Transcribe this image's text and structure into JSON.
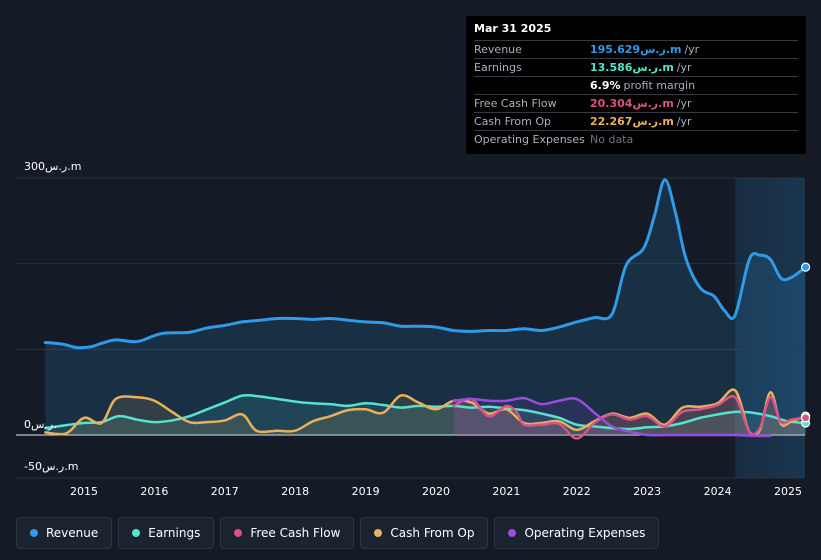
{
  "tooltip": {
    "date": "Mar 31 2025",
    "rows": [
      {
        "label": "Revenue",
        "value": "195.629ر.س.m",
        "unit": "/yr",
        "color": "#2f9ae9"
      },
      {
        "label": "Earnings",
        "value": "13.586ر.س.m",
        "unit": "/yr",
        "color": "#57e2cf"
      },
      {
        "label": "",
        "value": "6.9%",
        "unit": "profit margin",
        "color": "#ffffff"
      },
      {
        "label": "Free Cash Flow",
        "value": "20.304ر.س.m",
        "unit": "/yr",
        "color": "#d9528b"
      },
      {
        "label": "Cash From Op",
        "value": "22.267ر.س.m",
        "unit": "/yr",
        "color": "#e9b05b"
      },
      {
        "label": "Operating Expenses",
        "value": "No data",
        "unit": "",
        "color": "#6b7380"
      }
    ]
  },
  "legend": [
    {
      "label": "Revenue",
      "color": "#2f9ae9"
    },
    {
      "label": "Earnings",
      "color": "#57e2cf"
    },
    {
      "label": "Free Cash Flow",
      "color": "#d9528b"
    },
    {
      "label": "Cash From Op",
      "color": "#e9b05b"
    },
    {
      "label": "Operating Expenses",
      "color": "#9a4ce0"
    }
  ],
  "chart_data": {
    "type": "line",
    "title": "",
    "xlabel": "",
    "ylabel": "",
    "unit": "ر.س.m",
    "y_tick_labels": [
      "300ر.س.m",
      "0ر.س.",
      "-50ر.س.m"
    ],
    "x_tick_labels": [
      "2015",
      "2016",
      "2017",
      "2018",
      "2019",
      "2020",
      "2021",
      "2022",
      "2023",
      "2024",
      "2025"
    ],
    "xlim": [
      2014.0,
      2025.25
    ],
    "ylim": [
      -50,
      300
    ],
    "grid": true,
    "series": [
      {
        "name": "Revenue",
        "color": "#2f9ae9",
        "x": [
          2014.45,
          2014.7,
          2014.9,
          2015.1,
          2015.25,
          2015.45,
          2015.75,
          2016.0,
          2016.15,
          2016.5,
          2016.75,
          2017.0,
          2017.25,
          2017.5,
          2017.75,
          2018.0,
          2018.25,
          2018.5,
          2018.75,
          2019.0,
          2019.25,
          2019.5,
          2019.75,
          2020.0,
          2020.25,
          2020.5,
          2020.75,
          2021.0,
          2021.25,
          2021.5,
          2021.75,
          2022.0,
          2022.25,
          2022.5,
          2022.7,
          2022.95,
          2023.1,
          2023.25,
          2023.4,
          2023.55,
          2023.75,
          2023.95,
          2024.1,
          2024.25,
          2024.45,
          2024.6,
          2024.75,
          2024.9,
          2025.05,
          2025.25
        ],
        "values": [
          108,
          106,
          102,
          103,
          107,
          111,
          109,
          116,
          119,
          120,
          125,
          128,
          132,
          134,
          136,
          136,
          135,
          136,
          134,
          132,
          131,
          127,
          127,
          126,
          122,
          121,
          122,
          122,
          124,
          122,
          126,
          132,
          137,
          141,
          198,
          218,
          255,
          298,
          260,
          206,
          172,
          162,
          145,
          140,
          205,
          210,
          205,
          183,
          184,
          196
        ]
      },
      {
        "name": "Earnings",
        "color": "#57e2cf",
        "x": [
          2014.45,
          2014.7,
          2015.0,
          2015.25,
          2015.5,
          2015.75,
          2016.0,
          2016.25,
          2016.5,
          2016.75,
          2017.0,
          2017.25,
          2017.5,
          2017.75,
          2018.0,
          2018.25,
          2018.5,
          2018.75,
          2019.0,
          2019.25,
          2019.5,
          2019.75,
          2020.0,
          2020.25,
          2020.5,
          2020.75,
          2021.0,
          2021.25,
          2021.5,
          2021.75,
          2022.0,
          2022.25,
          2022.5,
          2022.75,
          2023.0,
          2023.25,
          2023.5,
          2023.75,
          2024.0,
          2024.25,
          2024.5,
          2024.75,
          2025.0,
          2025.25
        ],
        "values": [
          8,
          11,
          14,
          15,
          22,
          18,
          15,
          17,
          22,
          30,
          38,
          46,
          45,
          42,
          39,
          37,
          36,
          34,
          37,
          35,
          32,
          34,
          33,
          34,
          32,
          33,
          31,
          29,
          25,
          20,
          12,
          10,
          8,
          7,
          9,
          10,
          14,
          20,
          24,
          27,
          26,
          22,
          16,
          14
        ]
      },
      {
        "name": "Free Cash Flow",
        "color": "#d9528b",
        "x": [
          2020.25,
          2020.5,
          2020.75,
          2021.0,
          2021.15,
          2021.25,
          2021.5,
          2021.75,
          2022.0,
          2022.25,
          2022.5,
          2022.75,
          2023.0,
          2023.25,
          2023.5,
          2023.75,
          2024.0,
          2024.25,
          2024.45,
          2024.6,
          2024.75,
          2024.9,
          2025.05,
          2025.25
        ],
        "values": [
          34,
          42,
          22,
          34,
          26,
          12,
          12,
          13,
          -4,
          14,
          24,
          18,
          22,
          10,
          27,
          30,
          35,
          44,
          4,
          8,
          44,
          15,
          18,
          20
        ]
      },
      {
        "name": "Cash From Op",
        "color": "#e9b05b",
        "x": [
          2014.45,
          2014.75,
          2015.0,
          2015.25,
          2015.45,
          2015.75,
          2016.0,
          2016.25,
          2016.5,
          2016.75,
          2017.0,
          2017.25,
          2017.45,
          2017.75,
          2018.0,
          2018.25,
          2018.5,
          2018.75,
          2019.0,
          2019.25,
          2019.5,
          2019.75,
          2020.0,
          2020.25,
          2020.5,
          2020.75,
          2021.0,
          2021.25,
          2021.5,
          2021.75,
          2022.0,
          2022.25,
          2022.5,
          2022.75,
          2023.0,
          2023.25,
          2023.5,
          2023.75,
          2024.0,
          2024.25,
          2024.45,
          2024.6,
          2024.75,
          2024.9,
          2025.05,
          2025.25
        ],
        "values": [
          3,
          2,
          20,
          14,
          42,
          44,
          40,
          27,
          15,
          15,
          17,
          24,
          5,
          5,
          5,
          16,
          22,
          29,
          30,
          26,
          46,
          38,
          30,
          40,
          38,
          25,
          30,
          14,
          14,
          16,
          6,
          16,
          25,
          20,
          25,
          12,
          32,
          33,
          37,
          52,
          4,
          6,
          50,
          13,
          16,
          22
        ]
      },
      {
        "name": "Operating Expenses",
        "color": "#9a4ce0",
        "x": [
          2020.25,
          2020.5,
          2020.75,
          2021.0,
          2021.25,
          2021.5,
          2021.75,
          2022.0,
          2022.25,
          2022.5,
          2022.75,
          2023.0,
          2023.25,
          2023.5,
          2023.75,
          2024.0,
          2024.25,
          2024.5,
          2024.75
        ],
        "values": [
          40,
          42,
          40,
          40,
          43,
          36,
          40,
          42,
          26,
          10,
          4,
          0,
          0,
          0,
          0,
          0,
          0,
          -1,
          -1
        ]
      }
    ],
    "forecast_band": {
      "from": 2024.25,
      "to": 2025.25
    },
    "hover_x": 2025.25
  }
}
